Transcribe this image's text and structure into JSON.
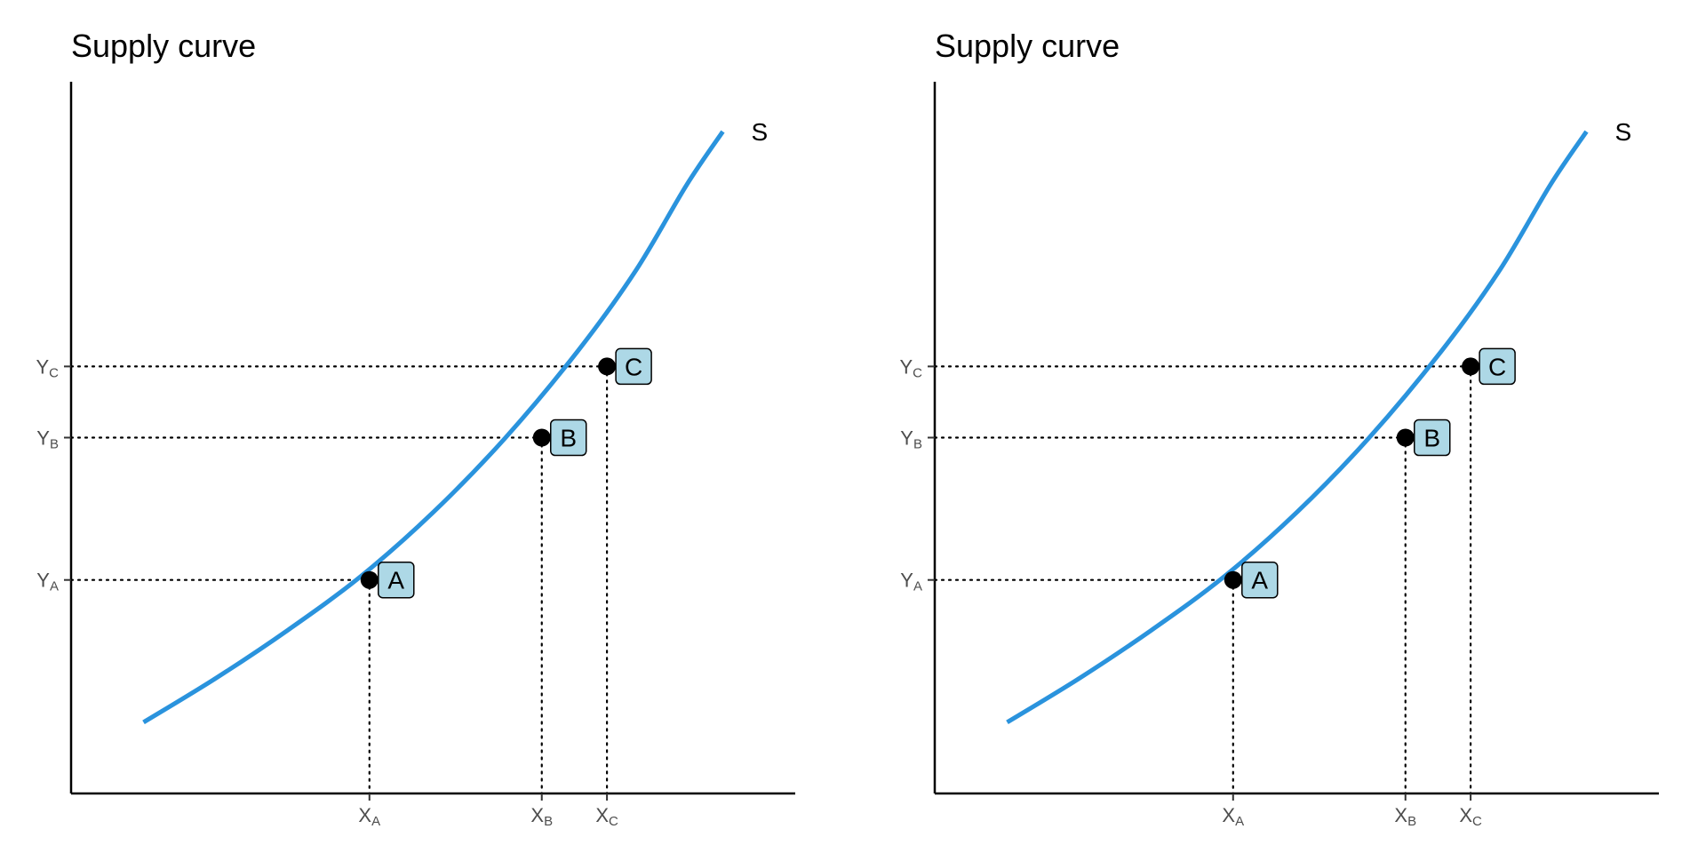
{
  "chart_data": [
    {
      "type": "line",
      "title": "Supply curve",
      "xlabel": "",
      "ylabel": "",
      "xlim": [
        0,
        10
      ],
      "ylim": [
        0,
        10
      ],
      "grid": false,
      "legend": "none",
      "series": [
        {
          "name": "S",
          "color": "#2a93dd",
          "x": [
            1.0,
            2.0,
            3.0,
            4.0,
            5.0,
            6.0,
            7.0,
            7.8,
            8.5,
            9.0
          ],
          "y": [
            1.0,
            1.62,
            2.3,
            3.05,
            3.95,
            5.0,
            6.22,
            7.35,
            8.55,
            9.3
          ]
        }
      ],
      "points": [
        {
          "label": "A",
          "x": 4.12,
          "y": 3.0,
          "x_tick": {
            "main": "X",
            "sub": "A"
          },
          "y_tick": {
            "main": "Y",
            "sub": "A"
          }
        },
        {
          "label": "B",
          "x": 6.5,
          "y": 5.0,
          "x_tick": {
            "main": "X",
            "sub": "B"
          },
          "y_tick": {
            "main": "Y",
            "sub": "B"
          }
        },
        {
          "label": "C",
          "x": 7.4,
          "y": 6.0,
          "x_tick": {
            "main": "X",
            "sub": "C"
          },
          "y_tick": {
            "main": "Y",
            "sub": "C"
          }
        }
      ],
      "point_fill": "#add8e6"
    },
    {
      "type": "line",
      "title": "Supply curve",
      "xlabel": "",
      "ylabel": "",
      "xlim": [
        0,
        10
      ],
      "ylim": [
        0,
        10
      ],
      "grid": false,
      "legend": "none",
      "series": [
        {
          "name": "S",
          "color": "#2a93dd",
          "x": [
            1.0,
            2.0,
            3.0,
            4.0,
            5.0,
            6.0,
            7.0,
            7.8,
            8.5,
            9.0
          ],
          "y": [
            1.0,
            1.62,
            2.3,
            3.05,
            3.95,
            5.0,
            6.22,
            7.35,
            8.55,
            9.3
          ]
        }
      ],
      "points": [
        {
          "label": "A",
          "x": 4.12,
          "y": 3.0,
          "x_tick": {
            "main": "X",
            "sub": "A"
          },
          "y_tick": {
            "main": "Y",
            "sub": "A"
          }
        },
        {
          "label": "B",
          "x": 6.5,
          "y": 5.0,
          "x_tick": {
            "main": "X",
            "sub": "B"
          },
          "y_tick": {
            "main": "Y",
            "sub": "B"
          }
        },
        {
          "label": "C",
          "x": 7.4,
          "y": 6.0,
          "x_tick": {
            "main": "X",
            "sub": "C"
          },
          "y_tick": {
            "main": "Y",
            "sub": "C"
          }
        }
      ],
      "point_fill": "#add8e6"
    }
  ]
}
